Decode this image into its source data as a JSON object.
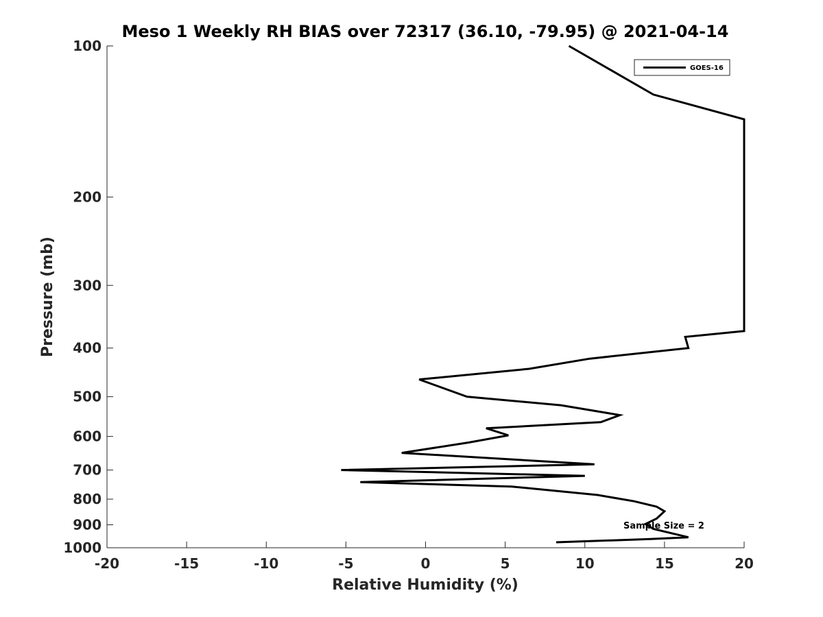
{
  "chart_data": {
    "type": "line",
    "title": "Meso 1 Weekly RH BIAS over 72317 (36.10, -79.95) @ 2021-04-14",
    "xlabel": "Relative Humidity (%)",
    "ylabel": "Pressure (mb)",
    "xlim": [
      -20,
      20
    ],
    "ylim": [
      100,
      1000
    ],
    "y_scale": "log",
    "y_reversed": true,
    "x_ticks": [
      -20,
      -15,
      -10,
      -5,
      0,
      5,
      10,
      15,
      20
    ],
    "x_tick_labels": [
      "-20",
      "-15",
      "-10",
      "-5",
      "0",
      "5",
      "10",
      "15",
      "20"
    ],
    "y_ticks": [
      100,
      200,
      300,
      400,
      500,
      600,
      700,
      800,
      900,
      1000
    ],
    "y_tick_labels": [
      "100",
      "200",
      "300",
      "400",
      "500",
      "600",
      "700",
      "800",
      "900",
      "1000"
    ],
    "grid": false,
    "legend": {
      "position": "top-right",
      "entries": [
        "GOES-16"
      ]
    },
    "annotations": [
      {
        "text": "Sample Size = 2",
        "x": 15,
        "y": 900
      }
    ],
    "series": [
      {
        "name": "GOES-16",
        "color": "#000000",
        "points": [
          {
            "x": 9.0,
            "y": 100
          },
          {
            "x": 14.3,
            "y": 125
          },
          {
            "x": 20.0,
            "y": 140
          },
          {
            "x": 20.0,
            "y": 370
          },
          {
            "x": 16.3,
            "y": 380
          },
          {
            "x": 16.5,
            "y": 400
          },
          {
            "x": 10.3,
            "y": 420
          },
          {
            "x": 6.5,
            "y": 440
          },
          {
            "x": -0.4,
            "y": 462
          },
          {
            "x": 2.6,
            "y": 500
          },
          {
            "x": 8.5,
            "y": 520
          },
          {
            "x": 12.2,
            "y": 544
          },
          {
            "x": 11.0,
            "y": 562
          },
          {
            "x": 3.8,
            "y": 578
          },
          {
            "x": 5.2,
            "y": 597
          },
          {
            "x": 2.7,
            "y": 617
          },
          {
            "x": -1.5,
            "y": 647
          },
          {
            "x": 10.6,
            "y": 682
          },
          {
            "x": -5.3,
            "y": 700
          },
          {
            "x": 10.0,
            "y": 719
          },
          {
            "x": -4.1,
            "y": 740
          },
          {
            "x": 5.4,
            "y": 755
          },
          {
            "x": 10.8,
            "y": 785
          },
          {
            "x": 13.1,
            "y": 808
          },
          {
            "x": 14.5,
            "y": 828
          },
          {
            "x": 15.0,
            "y": 846
          },
          {
            "x": 14.5,
            "y": 875
          },
          {
            "x": 13.8,
            "y": 897
          },
          {
            "x": 14.3,
            "y": 917
          },
          {
            "x": 16.5,
            "y": 953
          },
          {
            "x": 14.0,
            "y": 961
          },
          {
            "x": 8.2,
            "y": 975
          }
        ]
      }
    ]
  }
}
